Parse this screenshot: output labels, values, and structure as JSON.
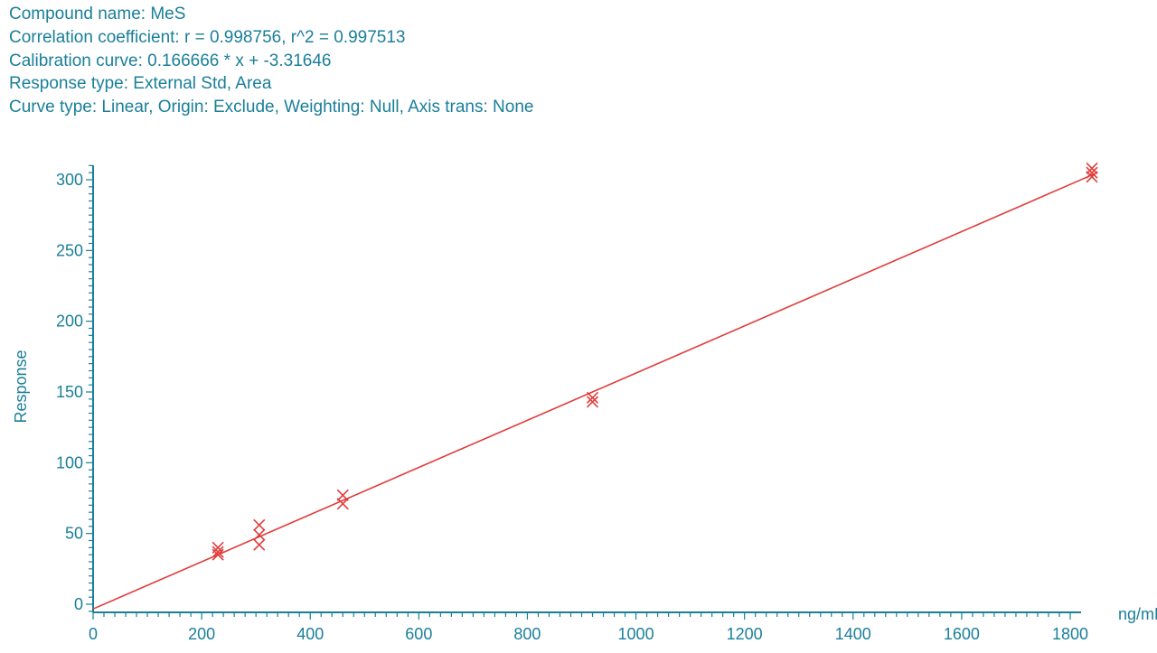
{
  "header": {
    "compound": "Compound name: MeS",
    "correlation": "Correlation coefficient: r = 0.998756, r^2 = 0.997513",
    "calibration": "Calibration curve: 0.166666 * x + -3.31646",
    "response_type": "Response type: External Std, Area",
    "curve_type": "Curve type: Linear, Origin: Exclude, Weighting: Null, Axis trans: None"
  },
  "chart_data": {
    "type": "scatter",
    "title": "",
    "xlabel": "ng/mL",
    "ylabel": "Response",
    "xlim": [
      0,
      1850
    ],
    "ylim": [
      -5,
      310
    ],
    "x_ticks": [
      0,
      200,
      400,
      600,
      800,
      1000,
      1200,
      1400,
      1600,
      1800
    ],
    "y_ticks": [
      0,
      50,
      100,
      150,
      200,
      250,
      300
    ],
    "fit_line": {
      "slope": 0.166666,
      "intercept": -3.31646
    },
    "points": [
      {
        "x": 230,
        "y": 40
      },
      {
        "x": 230,
        "y": 37
      },
      {
        "x": 230,
        "y": 35
      },
      {
        "x": 306,
        "y": 56
      },
      {
        "x": 306,
        "y": 49
      },
      {
        "x": 306,
        "y": 42
      },
      {
        "x": 460,
        "y": 77
      },
      {
        "x": 460,
        "y": 71
      },
      {
        "x": 920,
        "y": 146
      },
      {
        "x": 920,
        "y": 143
      },
      {
        "x": 1840,
        "y": 308
      },
      {
        "x": 1840,
        "y": 305
      },
      {
        "x": 1840,
        "y": 302
      }
    ],
    "colors": {
      "axis": "#1a7f9a",
      "series": "#e03c3c"
    }
  }
}
